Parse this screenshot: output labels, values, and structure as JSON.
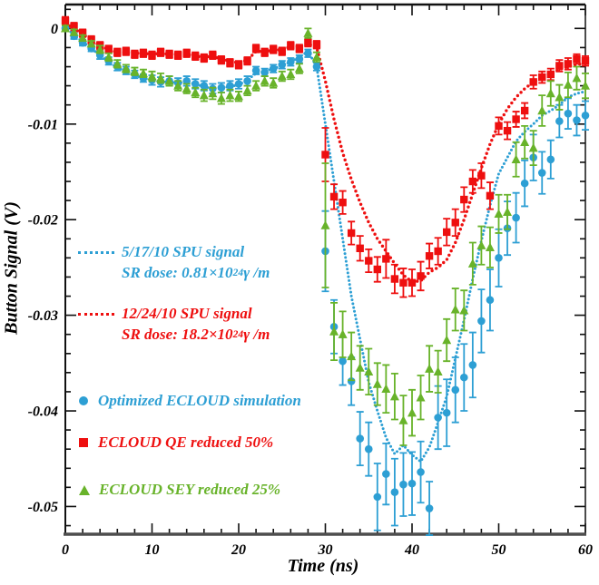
{
  "figure": {
    "xlabel": "Time (ns)",
    "ylabel": "Button Signal (V)"
  },
  "colors": {
    "blue": "#2d9fd4",
    "red": "#ee0f0f",
    "green": "#68b32a",
    "axis": "#111111",
    "axis_bottom": "#4d4d4d"
  },
  "legend": {
    "spu_blue": {
      "line1": "5/17/10 SPU signal",
      "sr_prefix": "SR dose: 0.81×10",
      "sr_sup": "24",
      "sr_suffix": "γ /m"
    },
    "spu_red": {
      "line1": "12/24/10 SPU signal",
      "sr_prefix": "SR dose: 18.2×10",
      "sr_sup": "24",
      "sr_suffix": "γ /m"
    },
    "sim_blue": "Optimized ECLOUD simulation",
    "sim_red": "ECLOUD QE reduced 50%",
    "sim_green": "ECLOUD SEY reduced 25%"
  },
  "chart_data": {
    "type": "scatter",
    "title": "",
    "xlabel": "Time (ns)",
    "ylabel": "Button Signal (V)",
    "xlim": [
      0,
      60
    ],
    "ylim": [
      -0.0529,
      0.0025
    ],
    "xticks": [
      0,
      10,
      20,
      30,
      40,
      50,
      60
    ],
    "xtick_labels": [
      "0",
      "10",
      "20",
      "30",
      "40",
      "50",
      "60"
    ],
    "yticks": [
      0,
      -0.01,
      -0.02,
      -0.03,
      -0.04,
      -0.05
    ],
    "ytick_labels": [
      "0",
      "-0.01",
      "-0.02",
      "-0.03",
      "-0.04",
      "-0.05"
    ],
    "x_minor_step": 2,
    "y_minor_step": 0.002,
    "grid": false,
    "legend_position": "inside-left",
    "series": [
      {
        "id": "spu-signal-2010-05-17",
        "name": "5/17/10 SPU signal (SR dose 0.81e24 gamma/m)",
        "style": "dots",
        "color": "#2d9fd4",
        "dot_r": 1.5,
        "dot_spacing": 4.3,
        "x_start": 0,
        "x_step": 1,
        "y": [
          0.0002,
          -0.0007,
          -0.0014,
          -0.0021,
          -0.0028,
          -0.0035,
          -0.0041,
          -0.0045,
          -0.0049,
          -0.0052,
          -0.0054,
          -0.0056,
          -0.0056,
          -0.0057,
          -0.0056,
          -0.0058,
          -0.0061,
          -0.0063,
          -0.0062,
          -0.0061,
          -0.0059,
          -0.0054,
          -0.0047,
          -0.0045,
          -0.0042,
          -0.0039,
          -0.0035,
          -0.003,
          -0.0024,
          -0.004,
          -0.01,
          -0.016,
          -0.022,
          -0.028,
          -0.0325,
          -0.037,
          -0.04,
          -0.0428,
          -0.0445,
          -0.0436,
          -0.0446,
          -0.0453,
          -0.0438,
          -0.0412,
          -0.0385,
          -0.0345,
          -0.0305,
          -0.0262,
          -0.0222,
          -0.0185,
          -0.0152,
          -0.0135,
          -0.0118,
          -0.0108,
          -0.01,
          -0.0091,
          -0.0086,
          -0.008,
          -0.0072,
          -0.0068,
          -0.0066
        ]
      },
      {
        "id": "spu-signal-2010-12-24",
        "name": "12/24/10 SPU signal (SR dose 18.2e24 gamma/m)",
        "style": "dots",
        "color": "#ee0f0f",
        "dot_r": 1.7,
        "dot_spacing": 5.2,
        "x_start": 0,
        "x_step": 1,
        "y": [
          0.0005,
          0.0,
          -0.0006,
          -0.0012,
          -0.0018,
          -0.0022,
          -0.0025,
          -0.0025,
          -0.0026,
          -0.0026,
          -0.0027,
          -0.0026,
          -0.0027,
          -0.0027,
          -0.0027,
          -0.0029,
          -0.003,
          -0.0029,
          -0.0032,
          -0.0034,
          -0.0036,
          -0.0033,
          -0.0024,
          -0.0024,
          -0.0023,
          -0.0022,
          -0.0019,
          -0.0019,
          -0.0016,
          -0.002,
          -0.0055,
          -0.0095,
          -0.013,
          -0.0158,
          -0.0182,
          -0.0203,
          -0.022,
          -0.0233,
          -0.0246,
          -0.0258,
          -0.0265,
          -0.0264,
          -0.0255,
          -0.025,
          -0.0242,
          -0.0224,
          -0.02,
          -0.0173,
          -0.0146,
          -0.0121,
          -0.01,
          -0.0084,
          -0.0072,
          -0.0063,
          -0.0056,
          -0.0051,
          -0.0047,
          -0.0043,
          -0.004,
          -0.0038,
          -0.0036
        ]
      },
      {
        "id": "optimized-ecloud-simulation",
        "name": "Optimized ECLOUD simulation",
        "style": "markers",
        "marker": "circle",
        "color": "#2d9fd4",
        "x_start": 0,
        "x_step": 1,
        "y": [
          0.0,
          -0.0008,
          -0.0015,
          -0.0021,
          -0.0028,
          -0.0034,
          -0.004,
          -0.0044,
          -0.0048,
          -0.0052,
          -0.0054,
          -0.0056,
          -0.0055,
          -0.0057,
          -0.0055,
          -0.0058,
          -0.006,
          -0.0063,
          -0.0062,
          -0.006,
          -0.0058,
          -0.0055,
          -0.0044,
          -0.0046,
          -0.0042,
          -0.0038,
          -0.0035,
          -0.0032,
          -0.0026,
          -0.004,
          -0.0233,
          -0.0312,
          -0.0348,
          -0.0369,
          -0.0429,
          -0.044,
          -0.049,
          -0.0466,
          -0.0485,
          -0.0477,
          -0.0476,
          -0.0464,
          -0.0502,
          -0.0407,
          -0.0402,
          -0.0378,
          -0.0365,
          -0.0352,
          -0.0306,
          -0.0284,
          -0.024,
          -0.0209,
          -0.0198,
          -0.0162,
          -0.0135,
          -0.0151,
          -0.0137,
          -0.0097,
          -0.0089,
          -0.0096,
          -0.0091
        ],
        "yerr": [
          0.0003,
          0.0003,
          0.0003,
          0.0003,
          0.0004,
          0.0004,
          0.0004,
          0.0004,
          0.0004,
          0.0004,
          0.0005,
          0.0005,
          0.0005,
          0.0005,
          0.0005,
          0.0005,
          0.0005,
          0.0005,
          0.0005,
          0.0005,
          0.0005,
          0.0005,
          0.0004,
          0.0004,
          0.0004,
          0.0004,
          0.0004,
          0.0004,
          0.0004,
          0.0004,
          0.0042,
          0.0028,
          0.0025,
          0.0025,
          0.0028,
          0.0028,
          0.0035,
          0.0032,
          0.0035,
          0.0033,
          0.0033,
          0.0032,
          0.0028,
          0.0033,
          0.0035,
          0.0034,
          0.0035,
          0.0034,
          0.0033,
          0.0032,
          0.003,
          0.0028,
          0.0026,
          0.0024,
          0.0024,
          0.0022,
          0.002,
          0.0017,
          0.0016,
          0.0016,
          0.0015
        ]
      },
      {
        "id": "ecloud-qe-reduced-50",
        "name": "ECLOUD QE reduced 50%",
        "style": "markers",
        "marker": "square",
        "color": "#ee0f0f",
        "x_start": 0,
        "x_step": 1,
        "y": [
          0.0008,
          0.0002,
          -0.0005,
          -0.0012,
          -0.0018,
          -0.0022,
          -0.0025,
          -0.0024,
          -0.0027,
          -0.0026,
          -0.0028,
          -0.0025,
          -0.0027,
          -0.0028,
          -0.0026,
          -0.0029,
          -0.0031,
          -0.0028,
          -0.0033,
          -0.0036,
          -0.0038,
          -0.0034,
          -0.0021,
          -0.0025,
          -0.0022,
          -0.0024,
          -0.0018,
          -0.0021,
          -0.0015,
          -0.0017,
          -0.0132,
          -0.0176,
          -0.0182,
          -0.0214,
          -0.023,
          -0.0243,
          -0.0252,
          -0.0241,
          -0.0262,
          -0.0266,
          -0.0266,
          -0.0259,
          -0.0238,
          -0.0233,
          -0.0213,
          -0.0203,
          -0.0179,
          -0.016,
          -0.0154,
          -0.0175,
          -0.0102,
          -0.0107,
          -0.0095,
          -0.0086,
          -0.0056,
          -0.0051,
          -0.0048,
          -0.0039,
          -0.0037,
          -0.0032,
          -0.0034
        ],
        "yerr": [
          0.0004,
          0.0004,
          0.0004,
          0.0004,
          0.0004,
          0.0004,
          0.0004,
          0.0004,
          0.0004,
          0.0004,
          0.0004,
          0.0004,
          0.0004,
          0.0004,
          0.0004,
          0.0004,
          0.0004,
          0.0004,
          0.0004,
          0.0004,
          0.0004,
          0.0004,
          0.0004,
          0.0004,
          0.0004,
          0.0004,
          0.0004,
          0.0004,
          0.0004,
          0.0004,
          0.0028,
          0.0013,
          0.0012,
          0.0012,
          0.0013,
          0.0012,
          0.0013,
          0.002,
          0.0015,
          0.0015,
          0.0014,
          0.0015,
          0.0013,
          0.0014,
          0.0014,
          0.0014,
          0.0013,
          0.0012,
          0.0013,
          0.0014,
          0.0009,
          0.0009,
          0.0008,
          0.0008,
          0.0007,
          0.0006,
          0.0006,
          0.0006,
          0.0006,
          0.0005,
          0.0005
        ]
      },
      {
        "id": "ecloud-sey-reduced-25",
        "name": "ECLOUD SEY reduced 25%",
        "style": "markers",
        "marker": "triangle",
        "color": "#68b32a",
        "x_start": 0,
        "x_step": 1,
        "y": [
          0.0,
          -0.0004,
          -0.001,
          -0.0016,
          -0.0022,
          -0.003,
          -0.0037,
          -0.0042,
          -0.0045,
          -0.0047,
          -0.005,
          -0.0052,
          -0.0055,
          -0.006,
          -0.0063,
          -0.0067,
          -0.007,
          -0.0068,
          -0.0073,
          -0.007,
          -0.0071,
          -0.0065,
          -0.006,
          -0.0055,
          -0.0057,
          -0.005,
          -0.0048,
          -0.0042,
          -0.0005,
          -0.003,
          -0.0206,
          -0.0317,
          -0.032,
          -0.0343,
          -0.0355,
          -0.0359,
          -0.0372,
          -0.0377,
          -0.0385,
          -0.041,
          -0.0402,
          -0.0386,
          -0.0356,
          -0.0359,
          -0.0326,
          -0.0294,
          -0.0295,
          -0.0246,
          -0.0227,
          -0.0229,
          -0.0194,
          -0.0192,
          -0.0137,
          -0.0119,
          -0.0125,
          -0.0086,
          -0.0068,
          -0.0072,
          -0.0059,
          -0.0052,
          -0.006
        ],
        "yerr": [
          0.0003,
          0.0003,
          0.0003,
          0.0003,
          0.0004,
          0.0004,
          0.0004,
          0.0004,
          0.0004,
          0.0004,
          0.0005,
          0.0005,
          0.0005,
          0.0005,
          0.0005,
          0.0005,
          0.0006,
          0.0006,
          0.0006,
          0.0006,
          0.0005,
          0.0005,
          0.0005,
          0.0005,
          0.0005,
          0.0005,
          0.0005,
          0.0005,
          0.0005,
          0.0005,
          0.0065,
          0.003,
          0.0024,
          0.0025,
          0.0023,
          0.0024,
          0.0022,
          0.0025,
          0.0024,
          0.0026,
          0.0024,
          0.0023,
          0.0024,
          0.0022,
          0.0022,
          0.0022,
          0.0021,
          0.0022,
          0.002,
          0.0021,
          0.002,
          0.0018,
          0.0018,
          0.0017,
          0.0018,
          0.0016,
          0.0013,
          0.0013,
          0.0013,
          0.0012,
          0.0013
        ]
      }
    ]
  }
}
